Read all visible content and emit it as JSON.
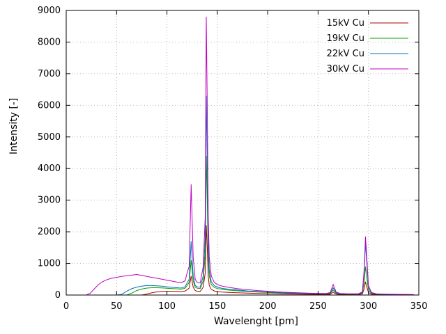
{
  "chart_data": {
    "type": "line",
    "title": "",
    "xlabel": "Wavelenght [pm]",
    "ylabel": "Intensity [-]",
    "xlim": [
      0,
      350
    ],
    "ylim": [
      0,
      9000
    ],
    "xticks": [
      0,
      50,
      100,
      150,
      200,
      250,
      300,
      350
    ],
    "yticks": [
      0,
      1000,
      2000,
      3000,
      4000,
      5000,
      6000,
      7000,
      8000,
      9000
    ],
    "grid": true,
    "legend_position": "top-right",
    "colors": {
      "border": "#000000",
      "grid": "#b5b5b5",
      "series_15kV": "#b00000",
      "series_19kV": "#00a000",
      "series_22kV": "#0070b8",
      "series_30kV": "#c000c0"
    },
    "x": [
      0,
      10,
      20,
      24,
      28,
      32,
      36,
      40,
      45,
      50,
      55,
      60,
      65,
      70,
      75,
      80,
      85,
      90,
      95,
      100,
      105,
      110,
      114,
      118,
      120,
      122,
      124,
      126,
      128,
      130,
      133,
      136,
      138,
      139,
      140,
      141,
      142,
      144,
      147,
      150,
      155,
      160,
      170,
      180,
      190,
      200,
      215,
      230,
      245,
      258,
      262,
      265,
      268,
      272,
      280,
      290,
      294,
      296,
      297,
      298,
      300,
      303,
      308,
      315,
      325,
      335,
      345
    ],
    "series": [
      {
        "name": "15kV Cu",
        "color": "#b00000",
        "values": [
          0,
          0,
          0,
          0,
          0,
          0,
          0,
          0,
          0,
          0,
          0,
          0,
          0,
          0,
          0,
          30,
          70,
          100,
          115,
          120,
          120,
          115,
          110,
          125,
          170,
          220,
          600,
          250,
          140,
          120,
          115,
          250,
          700,
          2200,
          1500,
          600,
          300,
          180,
          130,
          110,
          95,
          85,
          72,
          60,
          50,
          42,
          33,
          27,
          21,
          18,
          25,
          90,
          28,
          18,
          15,
          15,
          35,
          220,
          420,
          300,
          80,
          25,
          15,
          12,
          10,
          8,
          6
        ]
      },
      {
        "name": "19kV Cu",
        "color": "#00a000",
        "values": [
          0,
          0,
          0,
          0,
          0,
          0,
          0,
          0,
          0,
          0,
          0,
          0,
          60,
          140,
          190,
          220,
          230,
          230,
          225,
          215,
          205,
          195,
          185,
          215,
          300,
          400,
          1100,
          450,
          250,
          215,
          205,
          450,
          1300,
          4400,
          3000,
          1200,
          600,
          330,
          240,
          205,
          180,
          160,
          135,
          110,
          95,
          80,
          62,
          50,
          40,
          33,
          45,
          160,
          50,
          33,
          28,
          28,
          60,
          450,
          900,
          650,
          160,
          45,
          28,
          20,
          16,
          12,
          10
        ]
      },
      {
        "name": "22kV Cu",
        "color": "#0070b8",
        "values": [
          0,
          0,
          0,
          0,
          0,
          0,
          0,
          0,
          0,
          0,
          20,
          120,
          200,
          250,
          280,
          300,
          300,
          290,
          280,
          260,
          245,
          230,
          220,
          260,
          380,
          500,
          1700,
          600,
          300,
          260,
          250,
          600,
          1800,
          6300,
          4200,
          1700,
          800,
          420,
          300,
          250,
          210,
          190,
          160,
          130,
          110,
          95,
          75,
          60,
          45,
          40,
          60,
          230,
          70,
          40,
          35,
          35,
          80,
          800,
          1650,
          1200,
          250,
          60,
          35,
          25,
          20,
          15,
          12
        ]
      },
      {
        "name": "30kV Cu",
        "color": "#c000c0",
        "values": [
          0,
          0,
          0,
          60,
          200,
          330,
          420,
          480,
          530,
          560,
          590,
          610,
          630,
          650,
          620,
          590,
          560,
          530,
          500,
          470,
          440,
          410,
          390,
          450,
          700,
          900,
          3500,
          1200,
          500,
          400,
          380,
          900,
          2500,
          8800,
          6000,
          2500,
          1200,
          600,
          400,
          330,
          280,
          250,
          200,
          170,
          140,
          120,
          90,
          70,
          55,
          50,
          80,
          330,
          90,
          50,
          40,
          40,
          100,
          900,
          1850,
          1400,
          300,
          80,
          40,
          30,
          25,
          20,
          15
        ]
      }
    ]
  }
}
